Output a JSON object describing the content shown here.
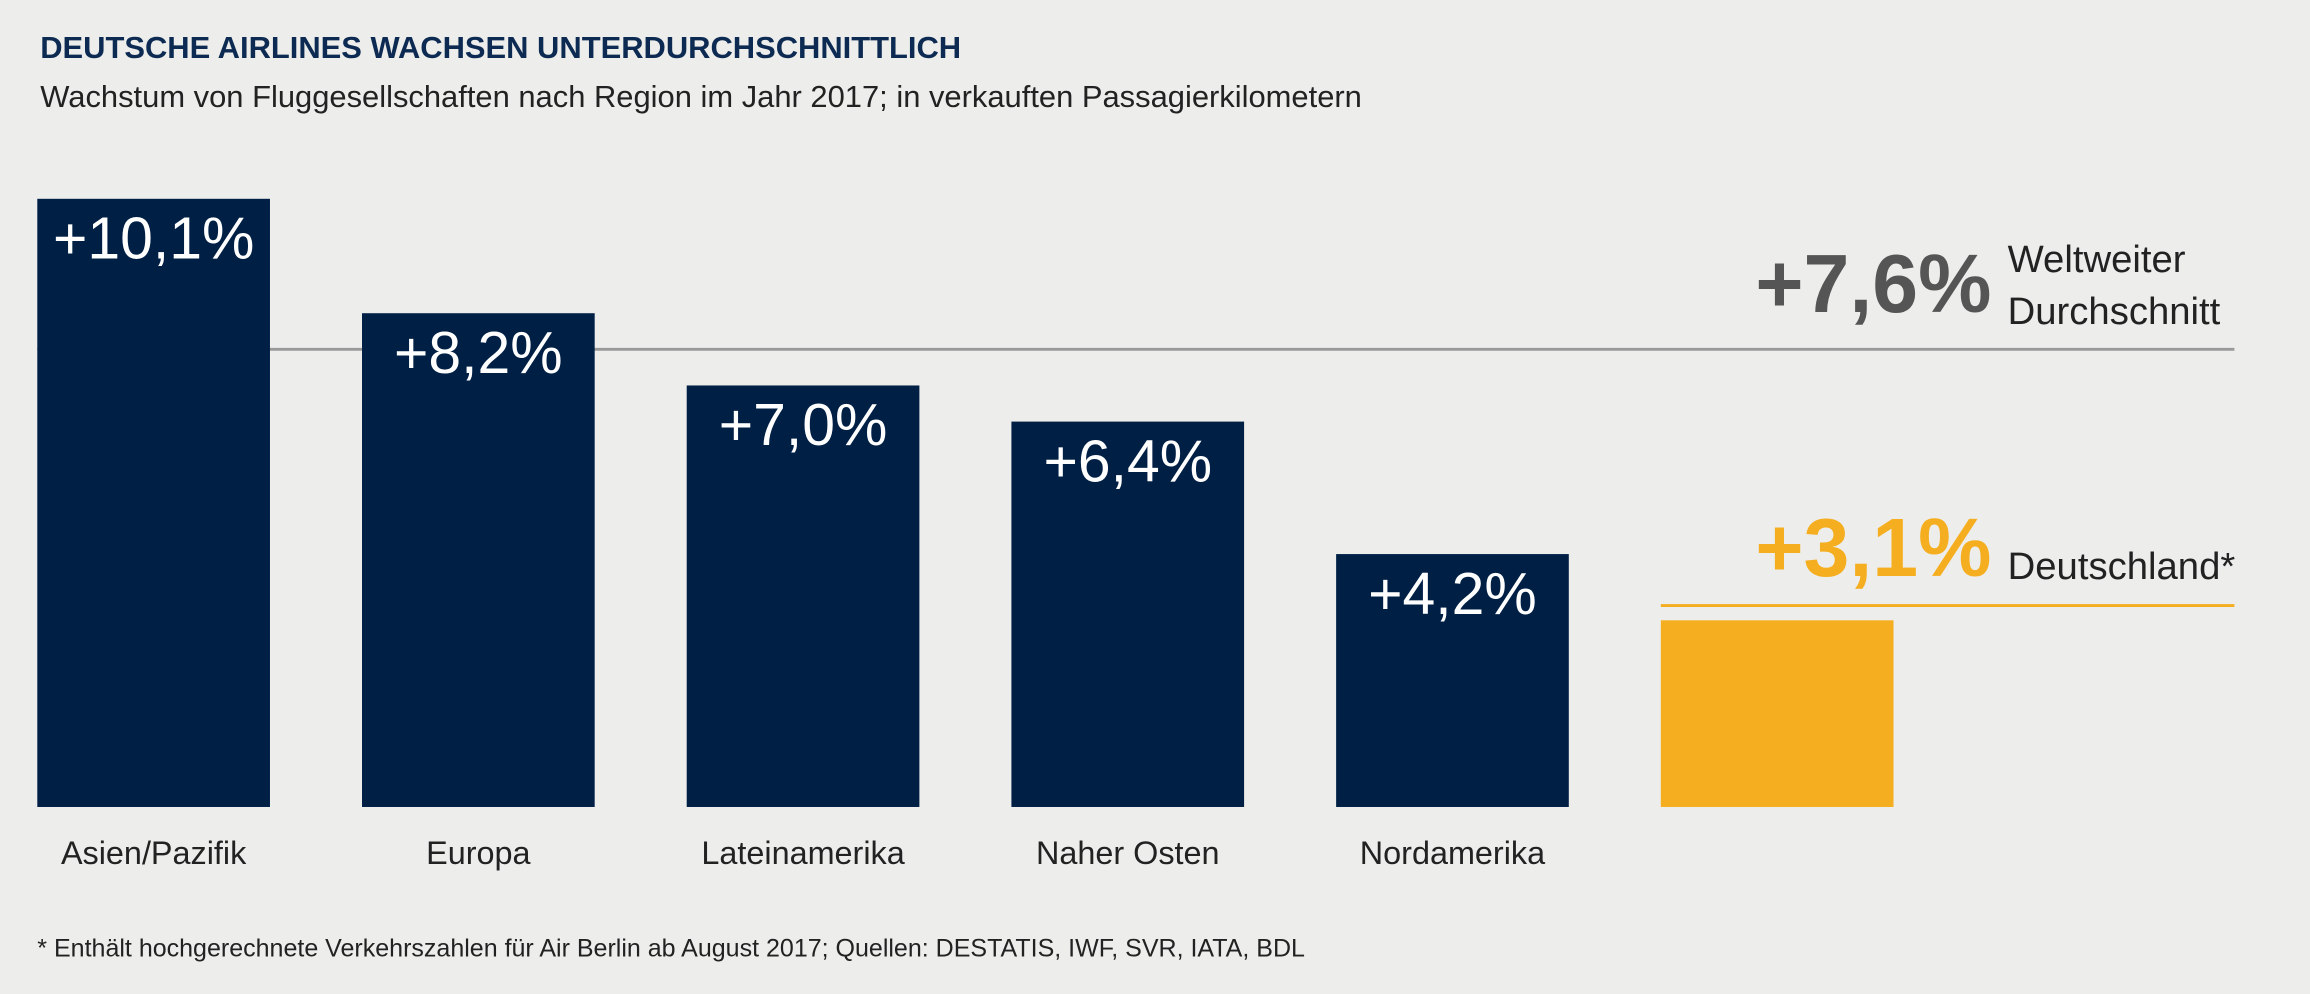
{
  "chart_data": {
    "type": "bar",
    "title": "DEUTSCHE AIRLINES WACHSEN UNTERDURCHSCHNITTLICH",
    "subtitle": "Wachstum von Fluggesellschaften nach Region im Jahr 2017; in verkauften Passagierkilometern",
    "categories": [
      "Asien/Pazifik",
      "Europa",
      "Lateinamerika",
      "Naher Osten",
      "Nordamerika",
      null
    ],
    "values": [
      10.1,
      8.2,
      7.0,
      6.4,
      4.2,
      3.1
    ],
    "value_labels": [
      "+10,1%",
      "+8,2%",
      "+7,0%",
      "+6,4%",
      "+4,2%",
      null
    ],
    "colors": [
      "#001f45",
      "#001f45",
      "#001f45",
      "#001f45",
      "#001f45",
      "#f5ae1f"
    ],
    "reference_lines": [
      {
        "value": 7.6,
        "label": "+7,6%",
        "name": [
          "Weltweiter",
          "Durchschnitt"
        ],
        "color": "#999999",
        "label_color": "#555555"
      },
      {
        "value": 3.1,
        "label": "+3,1%",
        "name": [
          "Deutschland*"
        ],
        "color": "#f5ae1f",
        "label_color": "#f5ae1f"
      }
    ],
    "footnote": "* Enthält hochgerechnete Verkehrszahlen für Air Berlin ab August 2017;  Quellen: DESTATIS, IWF, SVR, IATA, BDL"
  }
}
